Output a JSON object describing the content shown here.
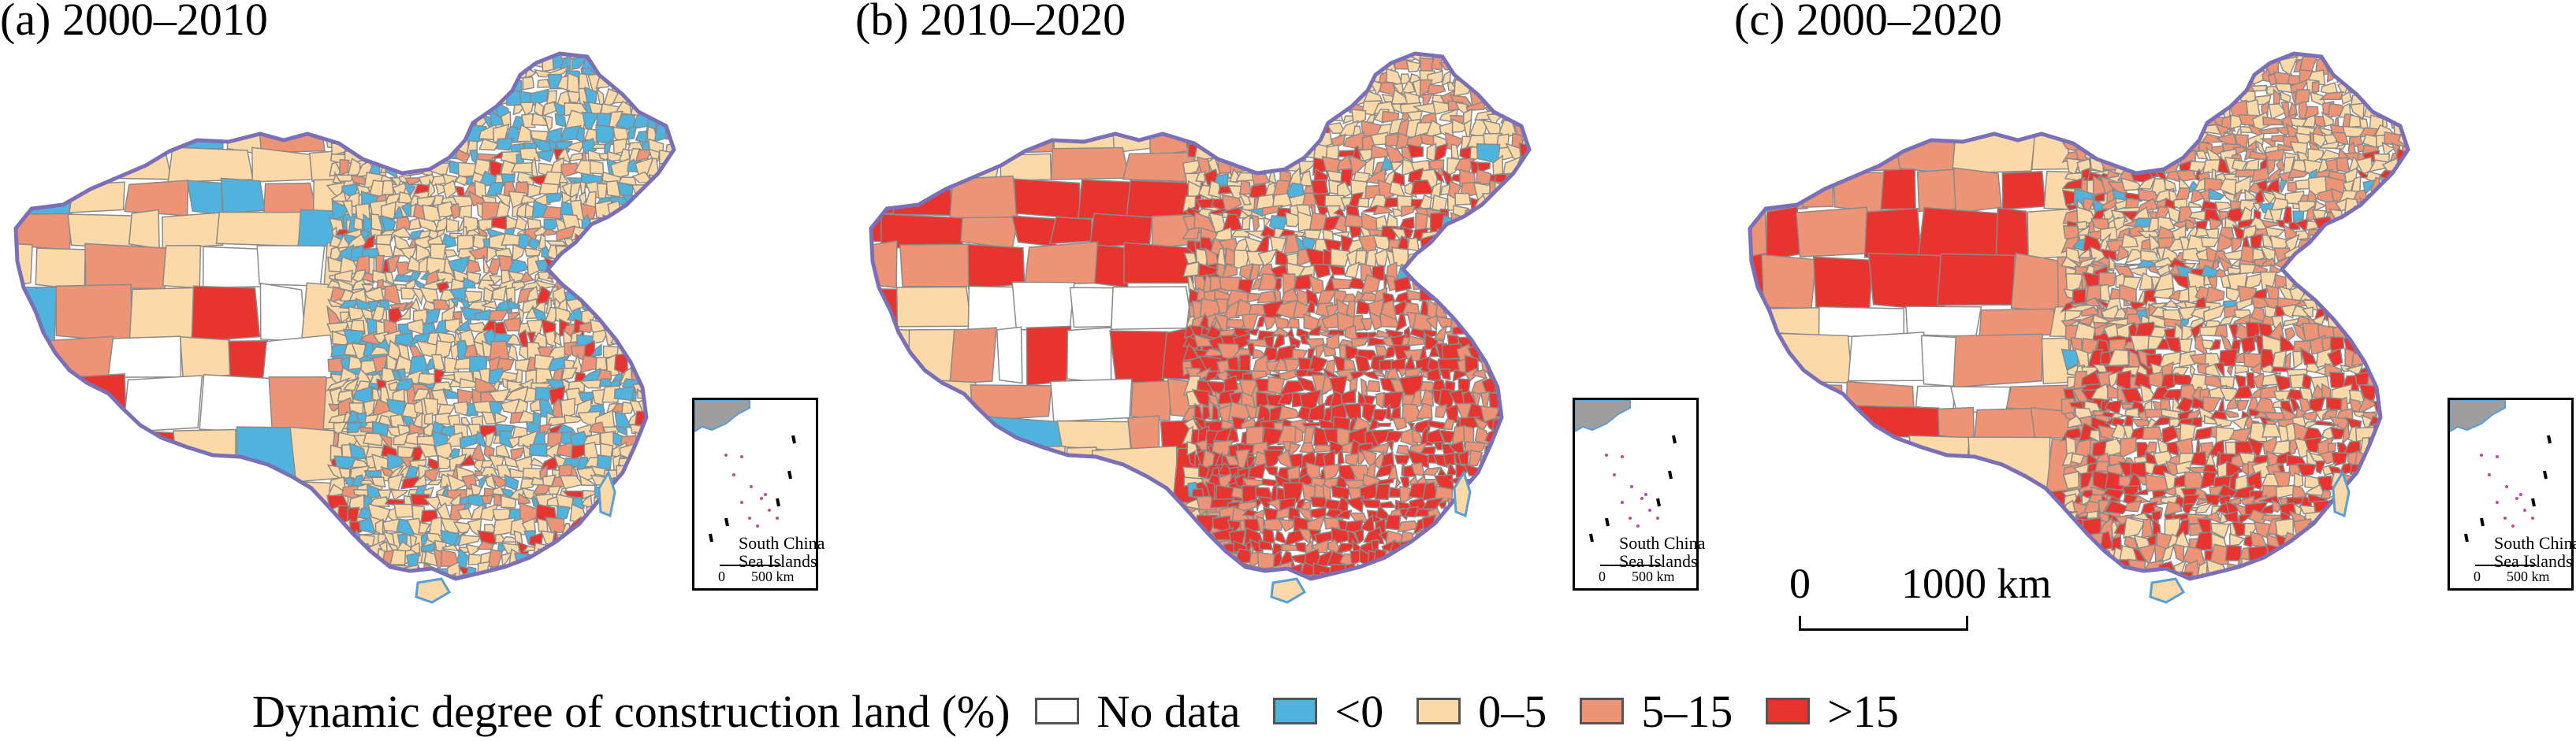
{
  "panels": [
    {
      "id": "a",
      "title": "(a) 2000–2010",
      "scheme": "a"
    },
    {
      "id": "b",
      "title": "(b) 2010–2020",
      "scheme": "b"
    },
    {
      "id": "c",
      "title": "(c) 2000–2020",
      "scheme": "c"
    }
  ],
  "inset": {
    "label_line1": "South China",
    "label_line2": "Sea Islands",
    "scale_zero": "0",
    "scale_value": "500 km"
  },
  "scalebar": {
    "zero": "0",
    "value": "1000 km"
  },
  "legend": {
    "title": "Dynamic degree of construction land (%)",
    "items": [
      {
        "label": "No data",
        "color": "#ffffff"
      },
      {
        "label": "<0",
        "color": "#4fb3de"
      },
      {
        "label": "0–5",
        "color": "#fbd9a8"
      },
      {
        "label": "5–15",
        "color": "#ec9475"
      },
      {
        "label": ">15",
        "color": "#e8342f"
      }
    ]
  }
}
